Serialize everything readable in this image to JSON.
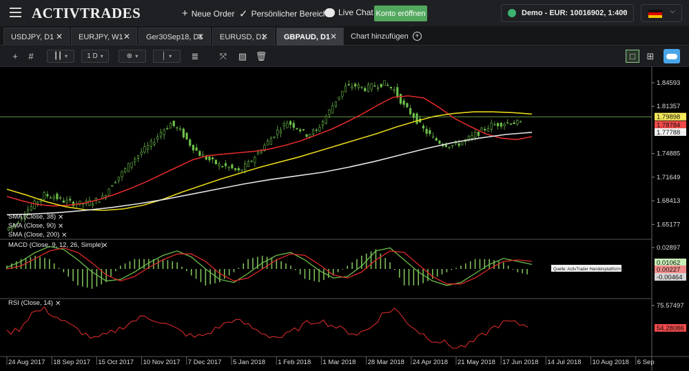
{
  "header": {
    "logo": "ACTIVTRADES",
    "new_order": "Neue Order",
    "personal_area": "Persönlicher Bereich",
    "live_chat": "Live Chat",
    "open_account": "Konto eröffnen",
    "account_label": "Demo - EUR: 10016902, 1:400",
    "colors": {
      "accent_green": "#52a85e"
    }
  },
  "tabs": [
    {
      "label": "USDJPY, D1"
    },
    {
      "label": "EURJPY, W1"
    },
    {
      "label": "Ger30Sep18, D1"
    },
    {
      "label": "EURUSD, D1"
    },
    {
      "label": "GBPAUD, D1",
      "active": true
    }
  ],
  "add_chart": "Chart hinzufügen",
  "toolbar": {
    "timeframe": "1 D"
  },
  "chart_data": [
    {
      "type": "candlestick",
      "symbol": "GBPAUD",
      "y_ticks": [
        "1.84593",
        "1.81357",
        "1.74885",
        "1.71649",
        "1.68413",
        "1.65177"
      ],
      "ylim": [
        1.637,
        1.862
      ],
      "x_ticks": [
        "24 Aug 2017",
        "18 Sep 2017",
        "15 Oct 2017",
        "10 Nov 2017",
        "7 Dec 2017",
        "5 Jan 2018",
        "1 Feb 2018",
        "1 Mar 2018",
        "28 Mar 2018",
        "24 Apr 2018",
        "21 May 2018",
        "17 Jun 2018",
        "14 Jul 2018",
        "10 Aug 2018",
        "6 Sep"
      ],
      "close": [
        1.644,
        1.652,
        1.668,
        1.68,
        1.692,
        1.69,
        1.684,
        1.681,
        1.68,
        1.683,
        1.688,
        1.708,
        1.722,
        1.738,
        1.751,
        1.762,
        1.778,
        1.79,
        1.78,
        1.762,
        1.748,
        1.74,
        1.733,
        1.73,
        1.724,
        1.735,
        1.75,
        1.765,
        1.78,
        1.792,
        1.785,
        1.775,
        1.78,
        1.8,
        1.822,
        1.84,
        1.842,
        1.838,
        1.842,
        1.845,
        1.836,
        1.814,
        1.8,
        1.782,
        1.77,
        1.762,
        1.76,
        1.764,
        1.772,
        1.78,
        1.788,
        1.79,
        1.792,
        1.79
      ],
      "price_lines": [
        {
          "label": "1.79898",
          "value": 1.79898,
          "color": "#f5e85a"
        },
        {
          "label": "1.78784",
          "value": 1.78784,
          "color": "#f14a4a"
        },
        {
          "label": "1.77788",
          "value": 1.77788,
          "color": "#f2f2f2"
        }
      ],
      "indicators": [
        {
          "name": "SMA (Close, 38)",
          "color": "#e02a2a",
          "values": [
            1.69,
            1.684,
            1.679,
            1.677,
            1.678,
            1.681,
            1.686,
            1.693,
            1.701,
            1.71,
            1.72,
            1.73,
            1.74,
            1.746,
            1.748,
            1.75,
            1.752,
            1.755,
            1.76,
            1.766,
            1.774,
            1.782,
            1.792,
            1.803,
            1.815,
            1.826,
            1.828,
            1.825,
            1.812,
            1.797,
            1.786,
            1.776,
            1.77,
            1.768,
            1.772
          ]
        },
        {
          "name": "SMA (Close, 90)",
          "color": "#e6d71a",
          "values": [
            1.7,
            1.692,
            1.683,
            1.676,
            1.672,
            1.671,
            1.673,
            1.678,
            1.686,
            1.696,
            1.705,
            1.714,
            1.722,
            1.73,
            1.737,
            1.744,
            1.752,
            1.76,
            1.768,
            1.776,
            1.785,
            1.793,
            1.8,
            1.804,
            1.806,
            1.806,
            1.805,
            1.803
          ]
        },
        {
          "name": "SMA (Close, 200)",
          "color": "#e6e6e6",
          "values": [
            1.665,
            1.666,
            1.668,
            1.671,
            1.675,
            1.68,
            1.686,
            1.693,
            1.7,
            1.707,
            1.713,
            1.718,
            1.723,
            1.73,
            1.738,
            1.747,
            1.756,
            1.764,
            1.77,
            1.775,
            1.778
          ]
        }
      ]
    },
    {
      "type": "macd",
      "title": "MACD (Close, 9, 12, 26, Simple)",
      "y_ticks": [
        "0.02897"
      ],
      "price_lines": [
        {
          "label": "0.01062",
          "color": "#c9efb8"
        },
        {
          "label": "0.00227",
          "color": "#f28c8c"
        },
        {
          "label": "-0.00464",
          "color": "#d6d6d6"
        }
      ],
      "macd": [
        0.002,
        0.01,
        0.022,
        0.03,
        0.026,
        0.012,
        -0.004,
        -0.016,
        -0.014,
        -0.004,
        0.008,
        0.018,
        0.024,
        0.016,
        0.0,
        -0.014,
        -0.018,
        -0.006,
        0.008,
        0.018,
        0.022,
        0.012,
        -0.002,
        -0.012,
        -0.01,
        0.004,
        0.024,
        0.028,
        0.012,
        -0.004,
        -0.016,
        -0.022,
        -0.018,
        -0.006,
        0.006,
        0.014,
        0.01,
        0.006
      ],
      "signal": [
        0.0,
        0.004,
        0.014,
        0.024,
        0.028,
        0.022,
        0.008,
        -0.008,
        -0.016,
        -0.01,
        0.002,
        0.012,
        0.02,
        0.02,
        0.01,
        -0.006,
        -0.016,
        -0.012,
        0.0,
        0.012,
        0.02,
        0.018,
        0.006,
        -0.008,
        -0.012,
        -0.004,
        0.012,
        0.024,
        0.022,
        0.006,
        -0.01,
        -0.02,
        -0.02,
        -0.012,
        0.0,
        0.01,
        0.012,
        0.01
      ]
    },
    {
      "type": "rsi",
      "title": "RSI (Close, 14)",
      "y_ticks": [
        "75.57497"
      ],
      "price_lines": [
        {
          "label": "54.28086",
          "color": "#f14a4a"
        }
      ],
      "values": [
        47,
        52,
        70,
        74,
        65,
        56,
        48,
        40,
        45,
        52,
        60,
        66,
        62,
        55,
        48,
        42,
        46,
        54,
        62,
        58,
        50,
        44,
        42,
        50,
        58,
        62,
        56,
        50,
        46,
        52,
        68,
        75,
        60,
        48,
        40,
        36,
        30,
        34,
        44,
        54,
        60,
        57,
        55
      ]
    }
  ],
  "source_note": "Quelle: ActivTrader Handelsplattform"
}
